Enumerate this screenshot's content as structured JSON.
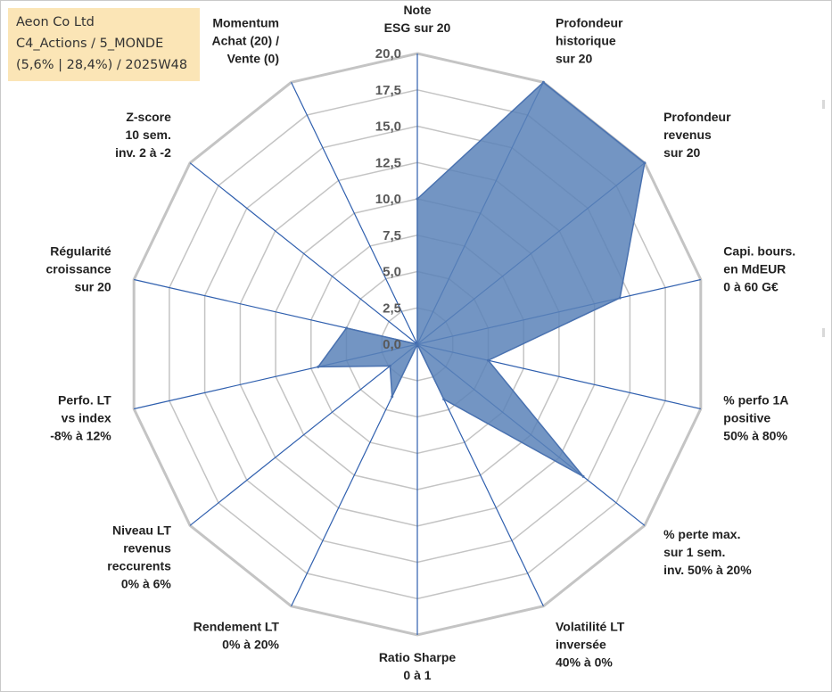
{
  "info_box": {
    "line1": "Aeon Co Ltd",
    "line2": "C4_Actions / 5_MONDE",
    "line3": "(5,6% | 28,4%) / 2025W48"
  },
  "colors": {
    "fill": "#5b82b8",
    "outline": "#4a72b0",
    "spoke": "#2f5fae",
    "grid": "#c4c4c4",
    "info_bg": "#fbe5b6"
  },
  "chart_data": {
    "type": "radar",
    "title": "",
    "axis_range": [
      0,
      20
    ],
    "major_step": 2.5,
    "tick_labels": [
      "0,0",
      "2,5",
      "5,0",
      "7,5",
      "10,0",
      "12,5",
      "15,0",
      "17,5",
      "20,0"
    ],
    "axes": [
      {
        "label": [
          "Note",
          "ESG sur 20"
        ],
        "value": 10.0
      },
      {
        "label": [
          "Profondeur",
          "historique",
          "sur 20"
        ],
        "value": 20.0
      },
      {
        "label": [
          "Profondeur",
          "revenus",
          "sur 20"
        ],
        "value": 20.0
      },
      {
        "label": [
          "Capi. bours.",
          "en MdEUR",
          "0 à 60 G€"
        ],
        "value": 14.3
      },
      {
        "label": [
          "% perfo 1A",
          "positive",
          "50% à 80%"
        ],
        "value": 5.0
      },
      {
        "label": [
          "% perte max.",
          "sur 1 sem.",
          "inv. 50% à 20%"
        ],
        "value": 14.6
      },
      {
        "label": [
          "Volatilité LT",
          "inversée",
          "40% à 0%"
        ],
        "value": 4.2
      },
      {
        "label": [
          "Ratio Sharpe",
          "0 à 1"
        ],
        "value": 0.0
      },
      {
        "label": [
          "Rendement LT",
          "0% à 20%"
        ],
        "value": 4.0
      },
      {
        "label": [
          "Niveau LT",
          "revenus",
          "reccurents",
          "0% à 6%"
        ],
        "value": 2.4
      },
      {
        "label": [
          "Perfo. LT",
          "vs index",
          "-8% à 12%"
        ],
        "value": 7.0
      },
      {
        "label": [
          "Régularité",
          "croissance",
          "sur 20"
        ],
        "value": 5.0
      },
      {
        "label": [
          "Z-score",
          "10 sem.",
          "inv. 2 à -2"
        ],
        "value": 0.0
      },
      {
        "label": [
          "Momentum",
          "Achat (20) /",
          "Vente (0)"
        ],
        "value": 0.0
      }
    ]
  }
}
